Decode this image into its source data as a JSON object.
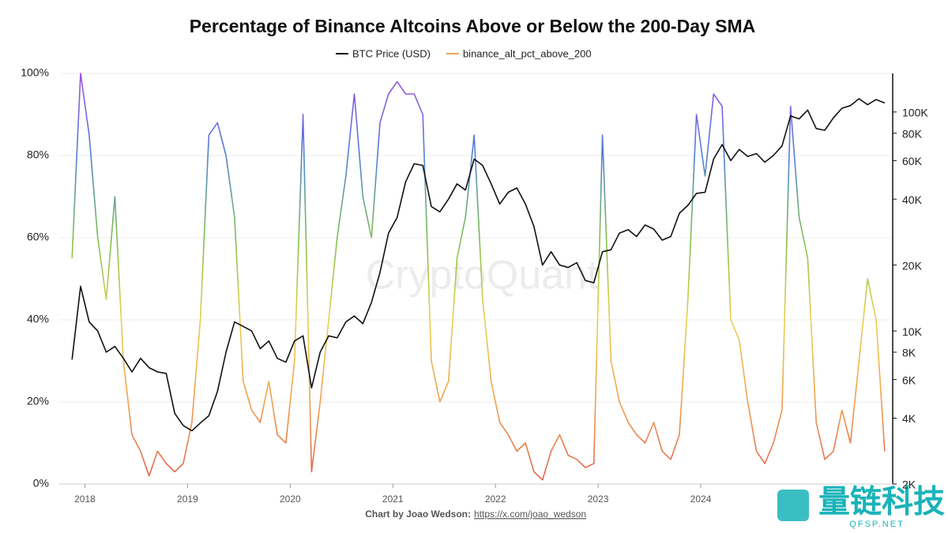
{
  "chart_data": {
    "type": "line",
    "title": "Percentage of Binance Altcoins Above or Below the 200-Day SMA",
    "watermark": "CryptoQuant",
    "footer": {
      "text": "Chart by Joao Wedson:",
      "link": "https://x.com/joao_wedson"
    },
    "logo": {
      "text": "量链科技",
      "subtext": "QFSP.NET"
    },
    "x": [
      2017.875,
      2017.958,
      2018.042,
      2018.125,
      2018.208,
      2018.292,
      2018.375,
      2018.458,
      2018.542,
      2018.625,
      2018.708,
      2018.792,
      2018.875,
      2018.958,
      2019.042,
      2019.125,
      2019.208,
      2019.292,
      2019.375,
      2019.458,
      2019.542,
      2019.625,
      2019.708,
      2019.792,
      2019.875,
      2019.958,
      2020.042,
      2020.125,
      2020.208,
      2020.292,
      2020.375,
      2020.458,
      2020.542,
      2020.625,
      2020.708,
      2020.792,
      2020.875,
      2020.958,
      2021.042,
      2021.125,
      2021.208,
      2021.292,
      2021.375,
      2021.458,
      2021.542,
      2021.625,
      2021.708,
      2021.792,
      2021.875,
      2021.958,
      2022.042,
      2022.125,
      2022.208,
      2022.292,
      2022.375,
      2022.458,
      2022.542,
      2022.625,
      2022.708,
      2022.792,
      2022.875,
      2022.958,
      2023.042,
      2023.125,
      2023.208,
      2023.292,
      2023.375,
      2023.458,
      2023.542,
      2023.625,
      2023.708,
      2023.792,
      2023.875,
      2023.958,
      2024.042,
      2024.125,
      2024.208,
      2024.292,
      2024.375,
      2024.458,
      2024.542,
      2024.625,
      2024.708,
      2024.792,
      2024.875,
      2024.958,
      2025.042,
      2025.125,
      2025.208,
      2025.292,
      2025.375,
      2025.458,
      2025.542,
      2025.625,
      2025.708,
      2025.792
    ],
    "series": [
      {
        "name": "BTC Price (USD)",
        "color": "#111111",
        "axis": "y2",
        "values": [
          7400,
          16000,
          11000,
          10000,
          8000,
          8500,
          7500,
          6500,
          7500,
          6800,
          6500,
          6400,
          4200,
          3700,
          3500,
          3800,
          4100,
          5300,
          8000,
          11000,
          10500,
          10000,
          8300,
          9000,
          7500,
          7200,
          9000,
          9500,
          5500,
          8000,
          9500,
          9300,
          11000,
          11700,
          10800,
          13500,
          18500,
          28000,
          33000,
          48000,
          58000,
          57000,
          37000,
          35000,
          40000,
          47000,
          44000,
          61000,
          57000,
          47000,
          38000,
          43000,
          45000,
          38000,
          30000,
          20000,
          23000,
          20000,
          19500,
          20500,
          17000,
          16600,
          23000,
          23500,
          28000,
          29000,
          27000,
          30500,
          29200,
          26000,
          27000,
          34500,
          37500,
          42500,
          43000,
          61000,
          71000,
          60000,
          67500,
          62700,
          64600,
          59000,
          63300,
          70000,
          96000,
          93000,
          102000,
          84000,
          82500,
          94000,
          104000,
          107000,
          115000,
          108000,
          114000,
          110000
        ]
      },
      {
        "name": "binance_alt_pct_above_200",
        "color": "#f0a35a",
        "gradient": [
          "#e0604a",
          "#f0a050",
          "#e8d050",
          "#80c050",
          "#5080d8",
          "#a050e0"
        ],
        "values": [
          55,
          100,
          85,
          60,
          45,
          70,
          30,
          12,
          8,
          2,
          8,
          5,
          3,
          5,
          15,
          40,
          85,
          88,
          80,
          65,
          25,
          18,
          15,
          25,
          12,
          10,
          30,
          90,
          3,
          20,
          40,
          60,
          75,
          95,
          70,
          60,
          88,
          95,
          98,
          95,
          95,
          90,
          30,
          20,
          25,
          55,
          65,
          85,
          45,
          25,
          15,
          12,
          8,
          10,
          3,
          1,
          8,
          12,
          7,
          6,
          4,
          5,
          85,
          30,
          20,
          15,
          12,
          10,
          15,
          8,
          6,
          12,
          45,
          90,
          75,
          95,
          92,
          40,
          35,
          20,
          8,
          5,
          10,
          18,
          92,
          65,
          55,
          15,
          6,
          8,
          18,
          10,
          30,
          50,
          40,
          8
        ]
      }
    ],
    "xlim": [
      2017.75,
      2025.87
    ],
    "xticks": [
      2018,
      2019,
      2020,
      2021,
      2022,
      2023,
      2024
    ],
    "ylim": [
      0,
      100
    ],
    "yticks": [
      {
        "value": 0,
        "label": "0%"
      },
      {
        "value": 20,
        "label": "20%"
      },
      {
        "value": 40,
        "label": "40%"
      },
      {
        "value": 60,
        "label": "60%"
      },
      {
        "value": 80,
        "label": "80%"
      },
      {
        "value": 100,
        "label": "100%"
      }
    ],
    "y2lim": [
      2000,
      150000
    ],
    "y2log": true,
    "y2ticks": [
      {
        "value": 2000,
        "label": "2K"
      },
      {
        "value": 4000,
        "label": "4K"
      },
      {
        "value": 6000,
        "label": "6K"
      },
      {
        "value": 8000,
        "label": "8K"
      },
      {
        "value": 10000,
        "label": "10K"
      },
      {
        "value": 20000,
        "label": "20K"
      },
      {
        "value": 40000,
        "label": "40K"
      },
      {
        "value": 60000,
        "label": "60K"
      },
      {
        "value": 80000,
        "label": "80K"
      },
      {
        "value": 100000,
        "label": "100K"
      }
    ],
    "grid": true,
    "legend": "top"
  }
}
